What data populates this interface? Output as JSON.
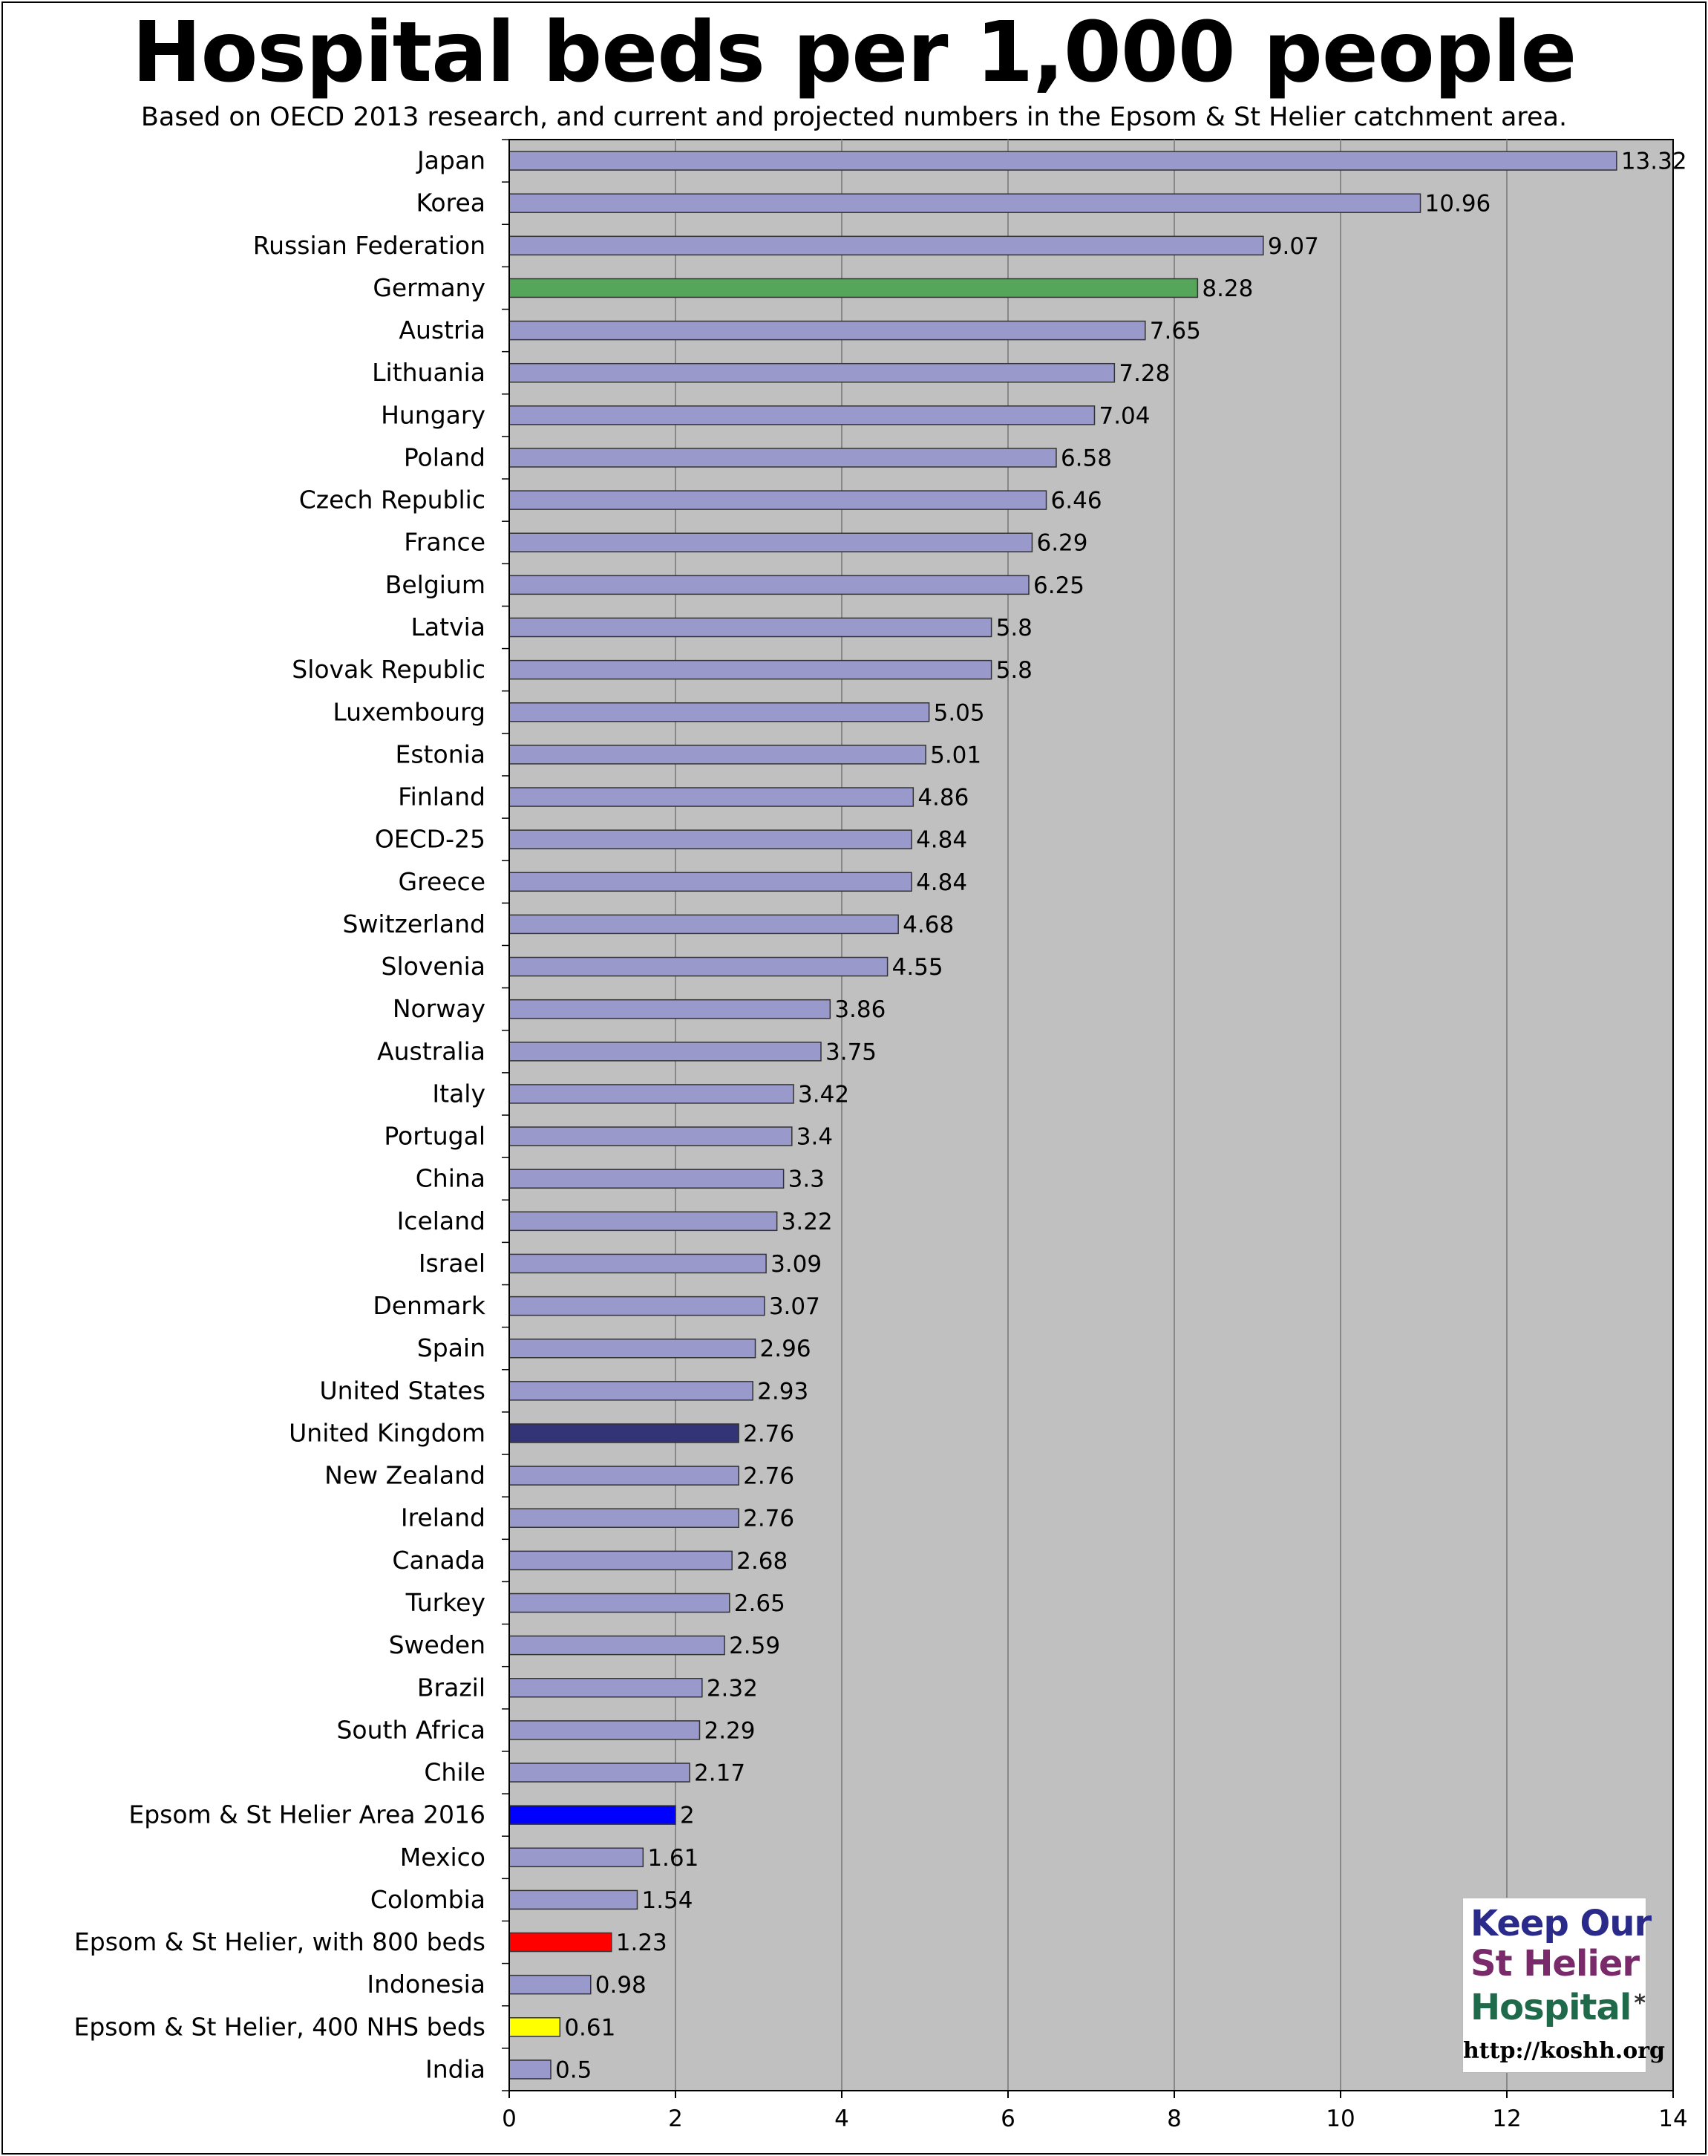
{
  "chart_data": {
    "type": "bar",
    "orientation": "horizontal",
    "title": "Hospital beds per 1,000 people",
    "subtitle": "Based on OECD 2013 research, and current and projected numbers in the Epsom & St Helier catchment area.",
    "xlim": [
      0,
      14
    ],
    "xticks": [
      0,
      2,
      4,
      6,
      8,
      10,
      12,
      14
    ],
    "grid": true,
    "default_color": "#9999cc",
    "plot_background": "#c0c0c0",
    "categories": [
      "Japan",
      "Korea",
      "Russian Federation",
      "Germany",
      "Austria",
      "Lithuania",
      "Hungary",
      "Poland",
      "Czech Republic",
      "France",
      "Belgium",
      "Latvia",
      "Slovak Republic",
      "Luxembourg",
      "Estonia",
      "Finland",
      "OECD-25",
      "Greece",
      "Switzerland",
      "Slovenia",
      "Norway",
      "Australia",
      "Italy",
      "Portugal",
      "China",
      "Iceland",
      "Israel",
      "Denmark",
      "Spain",
      "United States",
      "United Kingdom",
      "New Zealand",
      "Ireland",
      "Canada",
      "Turkey",
      "Sweden",
      "Brazil",
      "South Africa",
      "Chile",
      "Epsom & St Helier Area 2016",
      "Mexico",
      "Colombia",
      "Epsom & St Helier, with 800 beds",
      "Indonesia",
      "Epsom & St Helier, 400 NHS beds",
      "India"
    ],
    "values": [
      13.32,
      10.96,
      9.07,
      8.28,
      7.65,
      7.28,
      7.04,
      6.58,
      6.46,
      6.29,
      6.25,
      5.8,
      5.8,
      5.05,
      5.01,
      4.86,
      4.84,
      4.84,
      4.68,
      4.55,
      3.86,
      3.75,
      3.42,
      3.4,
      3.3,
      3.22,
      3.09,
      3.07,
      2.96,
      2.93,
      2.76,
      2.76,
      2.76,
      2.68,
      2.65,
      2.59,
      2.32,
      2.29,
      2.17,
      2,
      1.61,
      1.54,
      1.23,
      0.98,
      0.61,
      0.5
    ],
    "highlights": {
      "Germany": "#55a55a",
      "United Kingdom": "#333377",
      "Epsom & St Helier Area 2016": "#0000ff",
      "Epsom & St Helier, with 800 beds": "#ff0000",
      "Epsom & St Helier, 400 NHS beds": "#ffff00"
    }
  },
  "logo": {
    "line1": "Keep Our",
    "line2": "St Helier",
    "line3": "Hospital",
    "asterisk": "*",
    "url": "http://koshh.org"
  }
}
